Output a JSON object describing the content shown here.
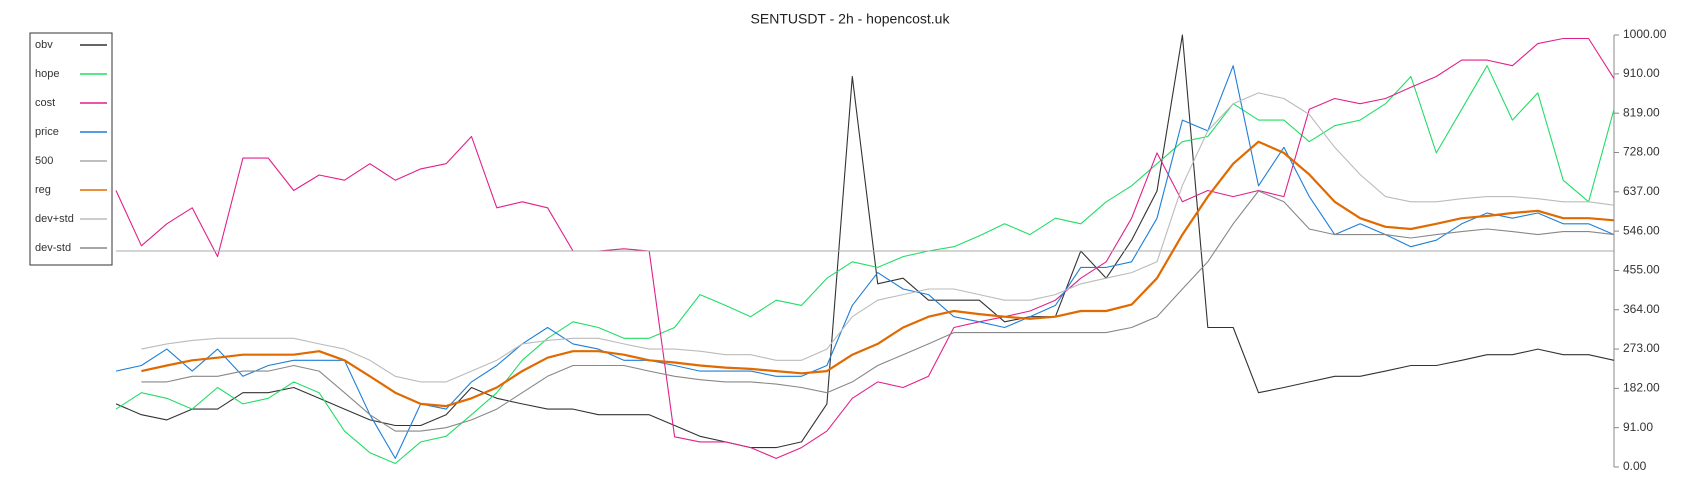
{
  "chart_data": {
    "type": "line",
    "title": "SENTUSDT - 2h - hopencost.uk",
    "ylim": [
      0,
      1000
    ],
    "yticks": [
      {
        "value": 0,
        "label": "0.00"
      },
      {
        "value": 91,
        "label": "91.00"
      },
      {
        "value": 182,
        "label": "182.00"
      },
      {
        "value": 273,
        "label": "273.00"
      },
      {
        "value": 364,
        "label": "364.00"
      },
      {
        "value": 455,
        "label": "455.00"
      },
      {
        "value": 546,
        "label": "546.00"
      },
      {
        "value": 637,
        "label": "637.00"
      },
      {
        "value": 728,
        "label": "728.00"
      },
      {
        "value": 819,
        "label": "819.00"
      },
      {
        "value": 910,
        "label": "910.00"
      },
      {
        "value": 1000,
        "label": "1000.00"
      }
    ],
    "grid": false,
    "legend": "upper left",
    "series": [
      {
        "name": "obv",
        "color": "#333333",
        "values": [
          146,
          121,
          109,
          134,
          134,
          172,
          172,
          184,
          159,
          134,
          109,
          96,
          96,
          121,
          184,
          159,
          146,
          134,
          134,
          121,
          121,
          121,
          96,
          71,
          58,
          45,
          45,
          58,
          146,
          904,
          424,
          437,
          386,
          386,
          386,
          336,
          348,
          348,
          500,
          437,
          525,
          639,
          1000,
          323,
          323,
          172,
          184,
          197,
          210,
          210,
          222,
          235,
          235,
          247,
          260,
          260,
          273,
          260,
          260,
          247
        ]
      },
      {
        "name": "hope",
        "color": "#22dd66",
        "values": [
          134,
          172,
          159,
          134,
          184,
          146,
          159,
          197,
          172,
          83,
          33,
          8,
          58,
          71,
          121,
          172,
          247,
          298,
          336,
          323,
          298,
          298,
          323,
          399,
          374,
          348,
          386,
          374,
          437,
          475,
          462,
          487,
          500,
          510,
          535,
          563,
          538,
          576,
          563,
          614,
          651,
          702,
          753,
          765,
          841,
          803,
          803,
          753,
          790,
          803,
          841,
          904,
          727,
          828,
          929,
          803,
          866,
          664,
          614,
          828
        ]
      },
      {
        "name": "cost",
        "color": "#e0218a",
        "values": [
          640,
          512,
          563,
          600,
          487,
          715,
          715,
          640,
          676,
          664,
          702,
          664,
          690,
          702,
          765,
          600,
          614,
          600,
          500,
          500,
          505,
          500,
          70,
          58,
          58,
          45,
          20,
          45,
          83,
          159,
          197,
          184,
          210,
          323,
          336,
          348,
          361,
          386,
          437,
          475,
          576,
          727,
          614,
          640,
          626,
          640,
          626,
          828,
          853,
          841,
          853,
          879,
          904,
          942,
          942,
          929,
          980,
          992,
          992,
          899
        ]
      },
      {
        "name": "price",
        "color": "#1e7fd8",
        "values": [
          222,
          235,
          273,
          222,
          273,
          210,
          235,
          247,
          247,
          247,
          121,
          20,
          146,
          134,
          197,
          235,
          285,
          323,
          285,
          273,
          247,
          247,
          235,
          222,
          222,
          222,
          210,
          210,
          235,
          374,
          450,
          412,
          399,
          348,
          336,
          323,
          348,
          374,
          462,
          462,
          475,
          576,
          803,
          778,
          929,
          651,
          740,
          626,
          538,
          563,
          538,
          510,
          525,
          563,
          588,
          576,
          588,
          563,
          563,
          538
        ]
      },
      {
        "name": "500",
        "color": "#aaaaaa",
        "values": [
          500,
          500,
          500,
          500,
          500,
          500,
          500,
          500,
          500,
          500,
          500,
          500,
          500,
          500,
          500,
          500,
          500,
          500,
          500,
          500,
          500,
          500,
          500,
          500,
          500,
          500,
          500,
          500,
          500,
          500,
          500,
          500,
          500,
          500,
          500,
          500,
          500,
          500,
          500,
          500,
          500,
          500,
          500,
          500,
          500,
          500,
          500,
          500,
          500,
          500,
          500,
          500,
          500,
          500,
          500,
          500,
          500,
          500,
          500,
          500
        ]
      },
      {
        "name": "reg",
        "color": "#e06a00",
        "values": [
          null,
          222,
          235,
          247,
          253,
          260,
          260,
          260,
          268,
          247,
          210,
          172,
          146,
          141,
          159,
          184,
          222,
          253,
          268,
          268,
          260,
          247,
          242,
          235,
          230,
          227,
          222,
          217,
          222,
          260,
          285,
          323,
          348,
          361,
          354,
          348,
          343,
          348,
          361,
          361,
          376,
          437,
          538,
          626,
          702,
          753,
          727,
          677,
          614,
          576,
          556,
          551,
          563,
          576,
          581,
          588,
          593,
          576,
          576,
          571
        ]
      },
      {
        "name": "dev+std",
        "color": "#bbbbbb",
        "values": [
          null,
          273,
          285,
          293,
          298,
          298,
          298,
          298,
          285,
          273,
          247,
          210,
          197,
          197,
          222,
          247,
          285,
          293,
          298,
          298,
          285,
          273,
          273,
          268,
          260,
          260,
          247,
          247,
          273,
          348,
          386,
          399,
          412,
          412,
          399,
          386,
          386,
          399,
          424,
          437,
          450,
          475,
          652,
          778,
          841,
          866,
          853,
          816,
          740,
          677,
          626,
          614,
          614,
          621,
          626,
          626,
          621,
          614,
          614,
          606
        ]
      },
      {
        "name": "dev-std",
        "color": "#888888",
        "values": [
          null,
          197,
          197,
          210,
          210,
          222,
          222,
          235,
          222,
          172,
          121,
          83,
          83,
          91,
          109,
          134,
          172,
          210,
          235,
          235,
          235,
          222,
          210,
          202,
          197,
          197,
          192,
          184,
          172,
          197,
          235,
          260,
          285,
          311,
          311,
          311,
          311,
          311,
          311,
          311,
          323,
          348,
          412,
          475,
          563,
          639,
          614,
          551,
          538,
          538,
          538,
          530,
          538,
          545,
          551,
          545,
          538,
          545,
          545,
          538
        ]
      }
    ]
  }
}
